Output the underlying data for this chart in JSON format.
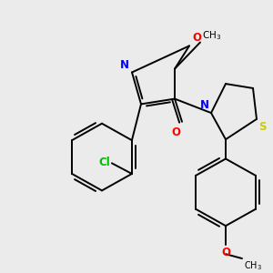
{
  "bg_color": "#ebebeb",
  "atom_colors": {
    "N": "#0000ff",
    "O": "#ff0000",
    "S": "#cccc00",
    "Cl": "#00bb00",
    "C": "#000000"
  },
  "lw": 1.4,
  "fs": 8.5
}
